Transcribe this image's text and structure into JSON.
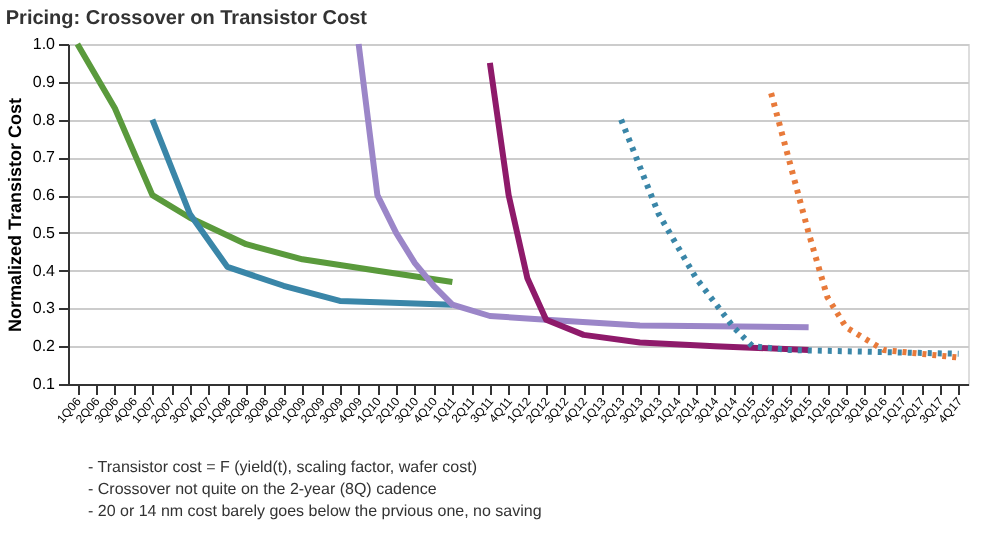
{
  "chart_data": {
    "type": "line",
    "title": "Pricing: Crossover on Transistor Cost",
    "ylabel": "Normalized Transistor Cost",
    "categories": [
      "1Q06",
      "2Q06",
      "3Q06",
      "4Q06",
      "1Q07",
      "2Q07",
      "3Q07",
      "4Q07",
      "1Q08",
      "2Q08",
      "3Q08",
      "4Q08",
      "1Q09",
      "2Q09",
      "3Q09",
      "4Q09",
      "1Q10",
      "2Q10",
      "3Q10",
      "4Q10",
      "1Q11",
      "2Q11",
      "3Q11",
      "4Q11",
      "1Q12",
      "2Q12",
      "3Q12",
      "4Q12",
      "1Q13",
      "2Q13",
      "3Q13",
      "4Q13",
      "1Q14",
      "2Q14",
      "3Q14",
      "4Q14",
      "1Q15",
      "2Q15",
      "3Q15",
      "4Q15",
      "1Q16",
      "2Q16",
      "3Q16",
      "4Q16",
      "1Q17",
      "2Q17",
      "3Q17",
      "4Q17"
    ],
    "series": [
      {
        "color": "#5a9a3c",
        "line_style": "solid",
        "values": [
          1.0,
          null,
          0.83,
          null,
          0.6,
          null,
          0.54,
          null,
          null,
          0.47,
          null,
          null,
          0.43,
          null,
          null,
          null,
          0.4,
          null,
          null,
          null,
          0.37,
          null,
          null,
          null,
          null,
          null,
          null,
          null,
          null,
          null,
          null,
          null,
          null,
          null,
          null,
          null,
          null,
          null,
          null,
          null,
          null,
          null,
          null,
          null,
          null,
          null,
          null,
          null
        ]
      },
      {
        "color": "#3a86a8",
        "line_style": "solid",
        "values": [
          null,
          null,
          null,
          null,
          0.8,
          null,
          0.55,
          null,
          0.41,
          null,
          null,
          0.36,
          null,
          null,
          0.32,
          null,
          null,
          null,
          null,
          null,
          0.31,
          null,
          null,
          null,
          null,
          null,
          null,
          null,
          null,
          null,
          null,
          null,
          null,
          null,
          null,
          null,
          null,
          null,
          null,
          null,
          null,
          null,
          null,
          null,
          null,
          null,
          null,
          null
        ]
      },
      {
        "color": "#9b86c8",
        "line_style": "solid",
        "values": [
          null,
          null,
          null,
          null,
          null,
          null,
          null,
          null,
          null,
          null,
          null,
          null,
          null,
          null,
          null,
          1.0,
          0.6,
          0.5,
          0.42,
          0.36,
          0.31,
          null,
          0.28,
          null,
          null,
          0.27,
          null,
          null,
          null,
          null,
          0.255,
          null,
          null,
          null,
          null,
          null,
          null,
          null,
          null,
          0.25,
          null,
          null,
          null,
          null,
          null,
          null,
          null,
          null
        ]
      },
      {
        "color": "#8e1a6a",
        "line_style": "solid",
        "values": [
          null,
          null,
          null,
          null,
          null,
          null,
          null,
          null,
          null,
          null,
          null,
          null,
          null,
          null,
          null,
          null,
          null,
          null,
          null,
          null,
          null,
          null,
          0.95,
          0.6,
          0.38,
          0.27,
          null,
          0.23,
          null,
          null,
          0.21,
          null,
          null,
          null,
          0.2,
          null,
          null,
          null,
          null,
          0.19,
          null,
          null,
          null,
          null,
          null,
          null,
          null,
          null
        ]
      },
      {
        "color": "#3a86a8",
        "line_style": "dotted",
        "values": [
          null,
          null,
          null,
          null,
          null,
          null,
          null,
          null,
          null,
          null,
          null,
          null,
          null,
          null,
          null,
          null,
          null,
          null,
          null,
          null,
          null,
          null,
          null,
          null,
          null,
          null,
          null,
          null,
          null,
          0.8,
          null,
          0.55,
          null,
          0.38,
          null,
          0.25,
          0.2,
          null,
          0.19,
          null,
          null,
          null,
          null,
          null,
          null,
          null,
          null,
          0.18
        ]
      },
      {
        "color": "#e87a3a",
        "line_style": "dotted",
        "values": [
          null,
          null,
          null,
          null,
          null,
          null,
          null,
          null,
          null,
          null,
          null,
          null,
          null,
          null,
          null,
          null,
          null,
          null,
          null,
          null,
          null,
          null,
          null,
          null,
          null,
          null,
          null,
          null,
          null,
          null,
          null,
          null,
          null,
          null,
          null,
          null,
          null,
          0.87,
          null,
          0.5,
          0.33,
          0.25,
          null,
          0.19,
          null,
          null,
          null,
          0.17
        ]
      }
    ],
    "ylim": [
      0.1,
      1.0
    ],
    "yticks": [
      0.1,
      0.2,
      0.3,
      0.4,
      0.5,
      0.6,
      0.7,
      0.8,
      0.9,
      {
        "value": 1.0,
        "label": "1.0"
      }
    ],
    "grid": "y",
    "legend": false,
    "annotations": [
      "- Transistor cost = F (yield(t), scaling factor, wafer cost)",
      "- Crossover not quite on the 2-year (8Q) cadence",
      "- 20 or 14 nm cost barely goes below the prvious one, no saving"
    ]
  }
}
